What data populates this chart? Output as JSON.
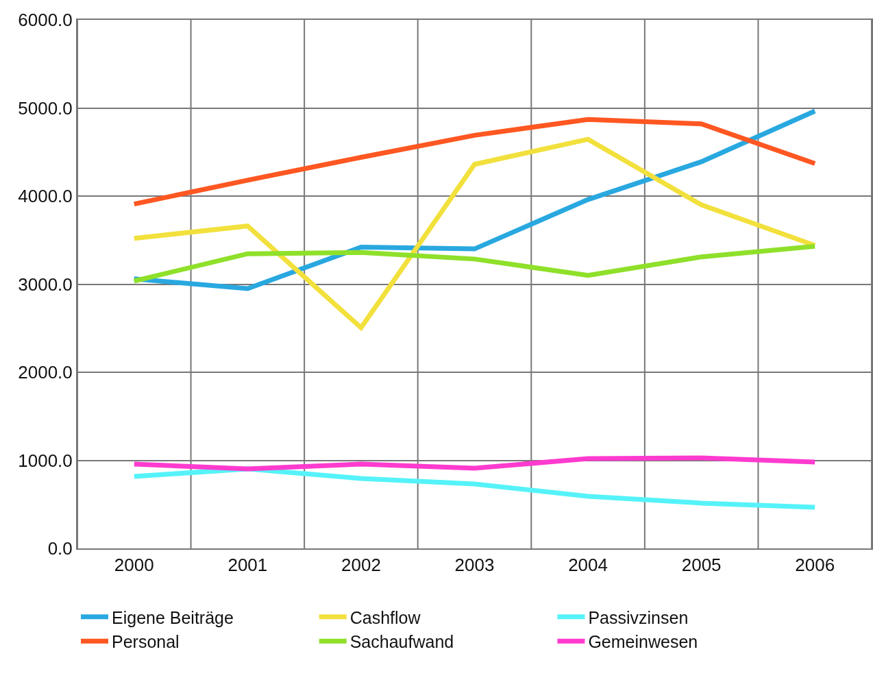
{
  "chart_data": {
    "type": "line",
    "categories": [
      "2000",
      "2001",
      "2002",
      "2003",
      "2004",
      "2005",
      "2006"
    ],
    "series": [
      {
        "name": "Eigene Beiträge",
        "color": "#29a8e0",
        "values": [
          3060,
          2950,
          3420,
          3400,
          3960,
          4390,
          4965
        ]
      },
      {
        "name": "Cashflow",
        "color": "#f2e03c",
        "values": [
          3520,
          3660,
          2505,
          4360,
          4645,
          3900,
          3440
        ]
      },
      {
        "name": "Passivzinsen",
        "color": "#55f3f9",
        "values": [
          817,
          903,
          794,
          732,
          591,
          514,
          467
        ]
      },
      {
        "name": "Personal",
        "color": "#ff5722",
        "values": [
          3910,
          4180,
          4440,
          4690,
          4870,
          4820,
          4370
        ]
      },
      {
        "name": "Sachaufwand",
        "color": "#8fe02a",
        "values": [
          3035,
          3345,
          3360,
          3285,
          3100,
          3310,
          3430
        ]
      },
      {
        "name": "Gemeinwesen",
        "color": "#ff3bcf",
        "values": [
          957,
          903,
          957,
          911,
          1019,
          1027,
          981
        ]
      }
    ],
    "ylim": [
      0,
      6000
    ],
    "yticks": [
      {
        "value": 0,
        "label": "0.0"
      },
      {
        "value": 1000,
        "label": "1000.0"
      },
      {
        "value": 2000,
        "label": "2000.0"
      },
      {
        "value": 3000,
        "label": "3000.0"
      },
      {
        "value": 4000,
        "label": "4000.0"
      },
      {
        "value": 5000,
        "label": "5000.0"
      },
      {
        "value": 6000,
        "label": "6000.0"
      }
    ],
    "grid": true,
    "legend": "bottom",
    "marker": "none",
    "line_style": "solid"
  }
}
